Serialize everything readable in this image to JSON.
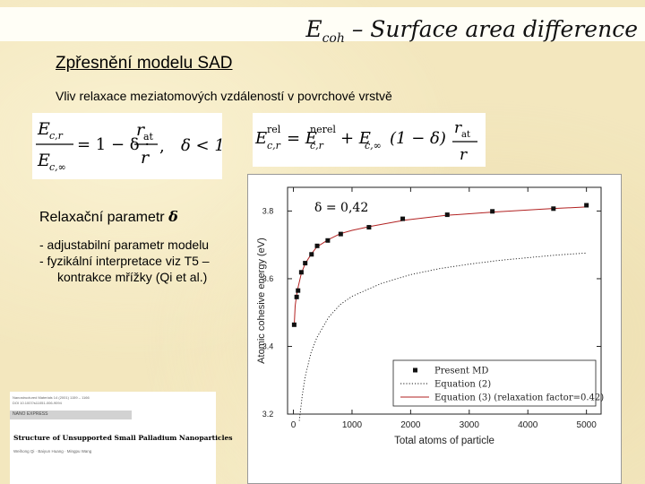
{
  "header": {
    "title_main": "E",
    "title_sub": "coh",
    "title_rest": " – Surface area difference"
  },
  "subtitle": "Zpřesnění modelu SAD",
  "line1": "Vliv relaxace meziatomových vzdáleností v povrchové vrstvě",
  "equation1": {
    "lhs_num": "E",
    "lhs_num_sub": "c,r",
    "lhs_den": "E",
    "lhs_den_sub": "c,∞",
    "rhs": "= 1 − δ ·",
    "frac_num": "r",
    "frac_num_sub": "at",
    "frac_den": "r",
    "condition": "δ < 1"
  },
  "equation2": {
    "lhs": "E",
    "lhs_sup": "rel",
    "lhs_sub": "c,r",
    "term1": "= E",
    "term1_sup": "nerel",
    "term1_sub": "c,r",
    "term2": "+ E",
    "term2_sub": "c,∞",
    "term2_factor": "(1 − δ)",
    "frac_num": "r",
    "frac_num_sub": "at",
    "frac_den": "r"
  },
  "param": {
    "heading": "Relaxační parametr ",
    "symbol": "δ",
    "bullets": [
      "- adjustabilní parametr modelu",
      "- fyzikální interpretace viz T5 – kontrakce mřížky (Qi et al.)"
    ]
  },
  "paper": {
    "meta1": "Nanostructured Materials 14 (2001) 1159 – 1166",
    "meta2": "DOI 10.1007/s11051-006-9094",
    "band": "NANO EXPRESS",
    "title": "Structure of Unsupported Small Palladium Nanoparticles",
    "authors": "Weihong Qi · Baiyun Huang · Mingpu Wang"
  },
  "colors": {
    "background": "#f3e7be",
    "title_bar": "#fffef6",
    "curve_equation3": "#b22222",
    "curve_equation2": "#1a1a1a",
    "marker": "#111111"
  },
  "chart_data": {
    "type": "scatter",
    "annotation": "δ = 0,42",
    "xlabel": "Total atoms of particle",
    "ylabel": "Atomic cohesive energy (eV)",
    "xlim": [
      -100,
      5250
    ],
    "ylim": [
      3.2,
      3.87
    ],
    "xticks": [
      0,
      1000,
      2000,
      3000,
      4000,
      5000
    ],
    "yticks": [
      3.2,
      3.4,
      3.6,
      3.8
    ],
    "xtick_labels": [
      "0",
      "1000",
      "2000",
      "3000",
      "4000",
      "5000"
    ],
    "ytick_labels": [
      "3.2",
      "3.4",
      "3.6",
      "3.8"
    ],
    "grid": false,
    "legend_position": "bottom-right",
    "series": [
      {
        "name": "Present MD",
        "style": "markers",
        "x": [
          13,
          55,
          79,
          135,
          201,
          309,
          405,
          586,
          807,
          1289,
          1865,
          2625,
          3395,
          4437,
          5000
        ],
        "y": [
          3.464,
          3.546,
          3.565,
          3.619,
          3.646,
          3.672,
          3.697,
          3.713,
          3.732,
          3.752,
          3.777,
          3.789,
          3.799,
          3.807,
          3.817
        ]
      },
      {
        "name": "Equation (2)",
        "style": "dotted",
        "x": [
          100,
          150,
          200,
          300,
          400,
          600,
          800,
          1000,
          1500,
          2000,
          2500,
          3000,
          3500,
          4000,
          4500,
          5000
        ],
        "y": [
          3.18,
          3.255,
          3.31,
          3.382,
          3.426,
          3.486,
          3.524,
          3.548,
          3.586,
          3.612,
          3.63,
          3.643,
          3.654,
          3.662,
          3.67,
          3.676
        ]
      },
      {
        "name": "Equation (3) (relaxation factor=0.42)",
        "style": "solid",
        "x": [
          13,
          30,
          55,
          80,
          135,
          200,
          300,
          400,
          600,
          800,
          1000,
          1300,
          1900,
          2600,
          3400,
          4400,
          5000
        ],
        "y": [
          3.46,
          3.52,
          3.552,
          3.575,
          3.616,
          3.644,
          3.672,
          3.694,
          3.716,
          3.733,
          3.743,
          3.754,
          3.773,
          3.787,
          3.797,
          3.807,
          3.812
        ]
      }
    ]
  }
}
